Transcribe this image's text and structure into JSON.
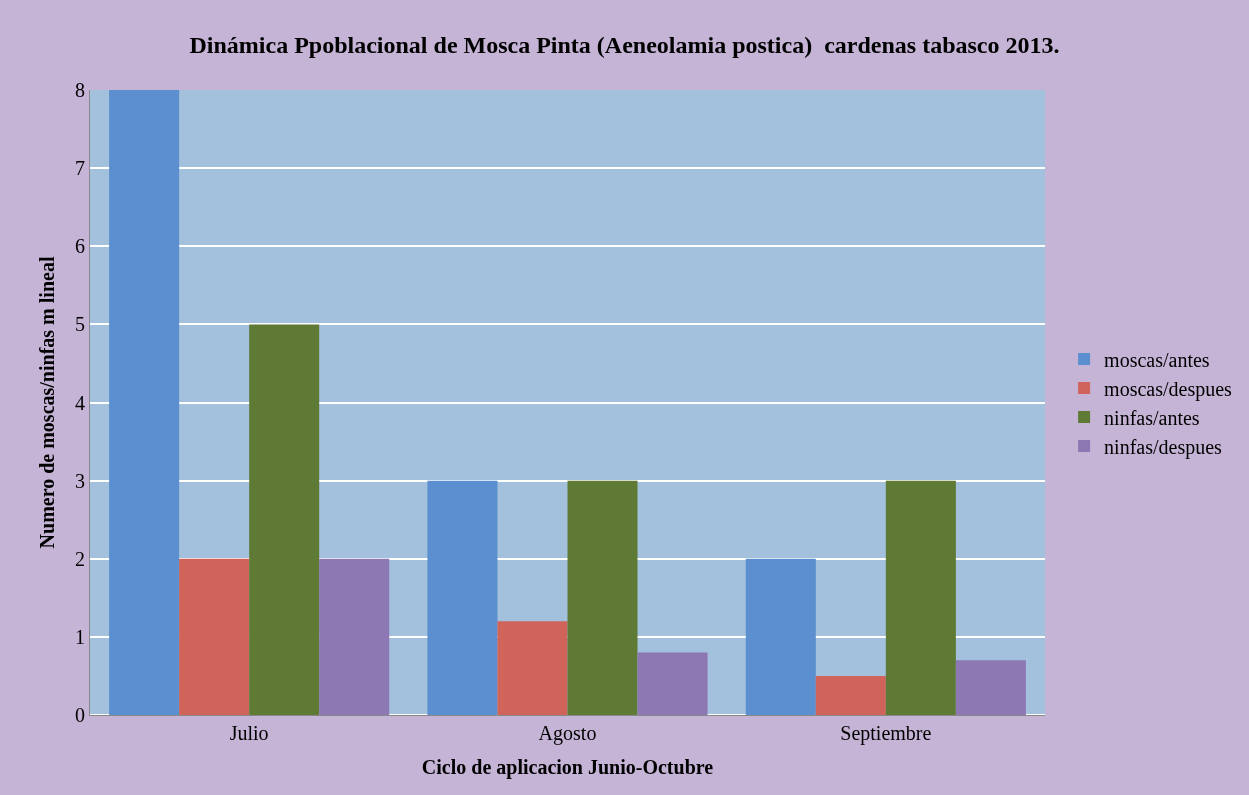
{
  "chart_data": {
    "type": "bar",
    "title": "Dinámica Ppoblacional de Mosca Pinta (Aeneolamia postica)  cardenas tabasco 2013.",
    "xlabel": "Ciclo de aplicacion Junio-Octubre",
    "ylabel": "Numero de moscas/ninfas m lineal",
    "categories": [
      "Julio",
      "Agosto",
      "Septiembre"
    ],
    "series": [
      {
        "name": "moscas/antes",
        "color": "#5b8fcf",
        "values": [
          8,
          3,
          2
        ]
      },
      {
        "name": "moscas/despues",
        "color": "#d0635a",
        "values": [
          2,
          1.2,
          0.5
        ]
      },
      {
        "name": "ninfas/antes",
        "color": "#5e7a35",
        "values": [
          5,
          3,
          3
        ]
      },
      {
        "name": "ninfas/despues",
        "color": "#8e78b3",
        "values": [
          2,
          0.8,
          0.7
        ]
      }
    ],
    "ylim": [
      0,
      8
    ],
    "yticks": [
      0,
      1,
      2,
      3,
      4,
      5,
      6,
      7,
      8
    ],
    "grid": "y",
    "legend": "right"
  }
}
